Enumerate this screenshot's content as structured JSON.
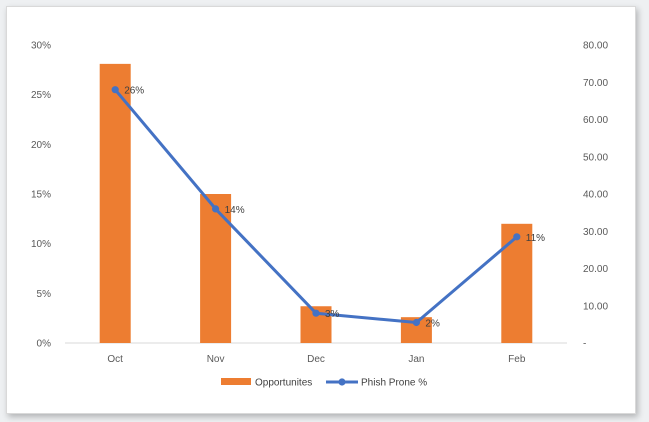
{
  "chart_data": {
    "type": "bar",
    "categories": [
      "Oct",
      "Nov",
      "Dec",
      "Jan",
      "Feb"
    ],
    "series": [
      {
        "name": "Opportunites",
        "type": "bar",
        "axis": "left",
        "color": "#ed7d31",
        "values": [
          28.1,
          15.0,
          3.7,
          2.6,
          12.0
        ]
      },
      {
        "name": "Phish Prone %",
        "type": "line",
        "axis": "right",
        "color": "#4472c4",
        "values": [
          68,
          36,
          8,
          5.5,
          28.5
        ],
        "data_labels": [
          "26%",
          "14%",
          "3%",
          "2%",
          "11%"
        ]
      }
    ],
    "left_axis": {
      "ylim": [
        0,
        30
      ],
      "ticks": [
        0,
        5,
        10,
        15,
        20,
        25,
        30
      ],
      "tick_labels": [
        "0%",
        "5%",
        "10%",
        "15%",
        "20%",
        "25%",
        "30%"
      ]
    },
    "right_axis": {
      "ylim": [
        0,
        80
      ],
      "ticks": [
        0,
        10,
        20,
        30,
        40,
        50,
        60,
        70,
        80
      ],
      "tick_labels": [
        "-",
        "10.00",
        "20.00",
        "30.00",
        "40.00",
        "50.00",
        "60.00",
        "70.00",
        "80.00"
      ]
    },
    "grid": false,
    "legend_position": "bottom"
  }
}
